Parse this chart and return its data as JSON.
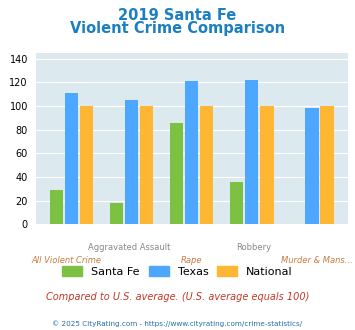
{
  "title_line1": "2019 Santa Fe",
  "title_line2": "Violent Crime Comparison",
  "categories": [
    "All Violent Crime",
    "Aggravated Assault",
    "Rape",
    "Robbery",
    "Murder & Mans..."
  ],
  "santa_fe": [
    29,
    18,
    86,
    36,
    0
  ],
  "texas": [
    111,
    105,
    121,
    122,
    98
  ],
  "national": [
    100,
    100,
    100,
    100,
    100
  ],
  "color_santa_fe": "#7dc142",
  "color_texas": "#4da6ff",
  "color_national": "#ffb733",
  "ylim": [
    0,
    145
  ],
  "yticks": [
    0,
    20,
    40,
    60,
    80,
    100,
    120,
    140
  ],
  "bg_color": "#dce9ef",
  "subtitle_note": "Compared to U.S. average. (U.S. average equals 100)",
  "footer": "© 2025 CityRating.com - https://www.cityrating.com/crime-statistics/",
  "title1_color": "#1b7fc2",
  "title2_color": "#1b7fc2",
  "subtitle_color": "#c0392b",
  "footer_color": "#2471a3",
  "cat_top": [
    "",
    "Aggravated Assault",
    "",
    "Robbery",
    ""
  ],
  "cat_bot": [
    "All Violent Crime",
    "",
    "Rape",
    "",
    "Murder & Mans..."
  ],
  "cat_top_color": "#888888",
  "cat_bot_color": "#c87941"
}
